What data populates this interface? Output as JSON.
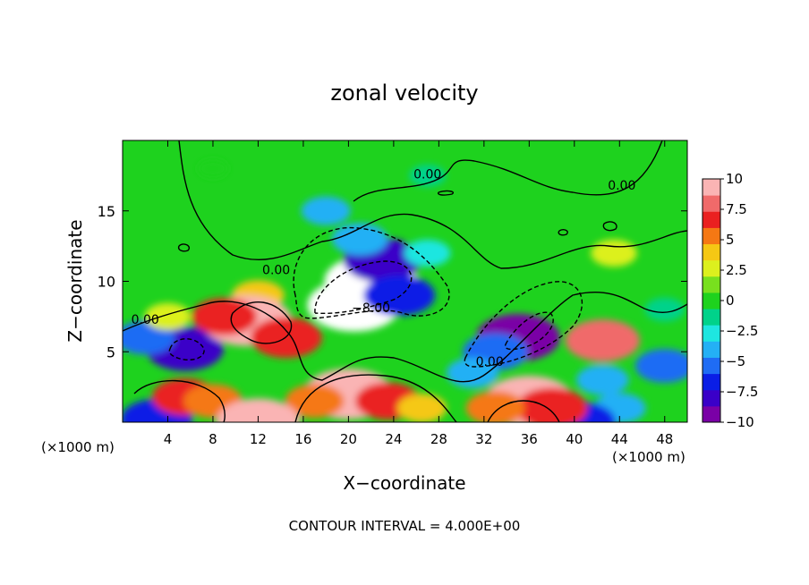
{
  "chart_data": {
    "type": "heatmap",
    "title": "zonal velocity",
    "xlabel": "X−coordinate",
    "ylabel": "Z−coordinate",
    "x_unit_left": "(×1000 m)",
    "x_unit_right": "(×1000 m)",
    "footer": "CONTOUR INTERVAL = 4.000E+00",
    "xlim": [
      0,
      50
    ],
    "ylim": [
      0,
      20
    ],
    "x_ticks": [
      4,
      8,
      12,
      16,
      20,
      24,
      28,
      32,
      36,
      40,
      44,
      48
    ],
    "y_ticks": [
      5,
      10,
      15
    ],
    "colorbar": {
      "min": -10,
      "max": 10,
      "ticks": [
        10,
        7.5,
        5,
        2.5,
        0,
        -2.5,
        -5,
        -7.5,
        -10
      ],
      "tick_labels": [
        "10",
        "7.5",
        "5",
        "2.5",
        "0",
        "−2.5",
        "−5",
        "−7.5",
        "−10"
      ],
      "colors": [
        "#7a00a6",
        "#3a00c8",
        "#0a1ee6",
        "#1f6cf4",
        "#24b0f5",
        "#1ee6e0",
        "#00d28a",
        "#1ed21e",
        "#78e01e",
        "#dcf01e",
        "#f5c814",
        "#f57814",
        "#ea2020",
        "#f06a6a",
        "#fab4b4"
      ]
    },
    "contour_labels": [
      {
        "text": "0.00",
        "x": 27,
        "y": 17.3
      },
      {
        "text": "0.00",
        "x": 44.2,
        "y": 16.5
      },
      {
        "text": "0.00",
        "x": 13.6,
        "y": 10.5
      },
      {
        "text": "0.00",
        "x": 2,
        "y": 7
      },
      {
        "text": "−8.00",
        "x": 22,
        "y": 7.8
      },
      {
        "text": "0.00",
        "x": 32.5,
        "y": 4
      }
    ],
    "anomalies": [
      {
        "x": 22,
        "y": 10,
        "value": -10.5
      },
      {
        "x": 20.5,
        "y": 8.3,
        "value": -10.5
      },
      {
        "x": 23,
        "y": 11.5,
        "value": -8
      },
      {
        "x": 24.5,
        "y": 9,
        "value": -7
      },
      {
        "x": 35,
        "y": 6,
        "value": -9
      },
      {
        "x": 33,
        "y": 5,
        "value": -6
      },
      {
        "x": 31,
        "y": 3.5,
        "value": -4
      },
      {
        "x": 5.5,
        "y": 5.2,
        "value": -8
      },
      {
        "x": 2,
        "y": 6,
        "value": -5
      },
      {
        "x": 48,
        "y": 4,
        "value": -5
      },
      {
        "x": 44,
        "y": 1,
        "value": -4
      },
      {
        "x": 42.5,
        "y": 3,
        "value": -4
      },
      {
        "x": 3,
        "y": 0.2,
        "value": -7
      },
      {
        "x": 40.5,
        "y": 0,
        "value": -7
      },
      {
        "x": 18,
        "y": 15,
        "value": -3.5
      },
      {
        "x": 21,
        "y": 13,
        "value": -4.5
      },
      {
        "x": 27,
        "y": 12,
        "value": -3
      },
      {
        "x": 27,
        "y": 17.5,
        "value": -1.5
      },
      {
        "x": 12,
        "y": 9,
        "value": 4
      },
      {
        "x": 11,
        "y": 7.2,
        "value": 10
      },
      {
        "x": 9,
        "y": 7.5,
        "value": 6
      },
      {
        "x": 14.5,
        "y": 6,
        "value": 7
      },
      {
        "x": 4,
        "y": 7.5,
        "value": 3
      },
      {
        "x": 42.5,
        "y": 5.8,
        "value": 7.5
      },
      {
        "x": 43.5,
        "y": 12,
        "value": 3
      },
      {
        "x": 20,
        "y": 2,
        "value": 10
      },
      {
        "x": 23.5,
        "y": 1.5,
        "value": 6
      },
      {
        "x": 17,
        "y": 1.5,
        "value": 5
      },
      {
        "x": 26.5,
        "y": 1,
        "value": 3.5
      },
      {
        "x": 36,
        "y": 1.5,
        "value": 10
      },
      {
        "x": 38,
        "y": 1,
        "value": 7
      },
      {
        "x": 33,
        "y": 1,
        "value": 5
      },
      {
        "x": 5.5,
        "y": 1.8,
        "value": 6
      },
      {
        "x": 8,
        "y": 1.5,
        "value": 5
      },
      {
        "x": 12,
        "y": 0,
        "value": 9
      },
      {
        "x": 8,
        "y": 18,
        "value": 0.5
      },
      {
        "x": 48,
        "y": 8,
        "value": -2
      }
    ]
  }
}
